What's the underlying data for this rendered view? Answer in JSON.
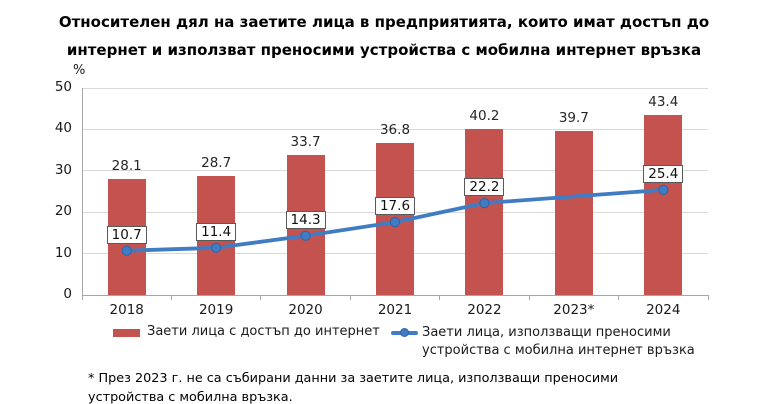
{
  "header": {
    "title_lines": [
      "Относителен дял на заетите лица в предприятията, които имат достъп до",
      "интернет и използват преносими устройства с мобилна интернет връзка"
    ]
  },
  "axis": {
    "unit_label": "%"
  },
  "legend": {
    "bar": "Заети лица с достъп до интернет",
    "line_l1": "Заети лица, използващи преносими",
    "line_l2": "устройства с мобилна интернет връзка"
  },
  "footnote": {
    "line1": "* През 2023 г. не са събирани данни за заетите лица, използващи преносими",
    "line2": "устройства с мобилна връзка."
  },
  "colors": {
    "bar": "#C4534F",
    "line": "#3F7CC3",
    "line_marker_edge": "#2F64A6",
    "grid": "#D9D9D9",
    "axis": "#A6A6A6",
    "label_box_border": "#595959"
  },
  "chart_data": {
    "type": "bar",
    "combo": "bar+line",
    "title": "Относителен дял на заетите лица в предприятията, които имат достъп до интернет и използват преносими устройства с мобилна интернет връзка",
    "categories": [
      "2018",
      "2019",
      "2020",
      "2021",
      "2022",
      "2023*",
      "2024"
    ],
    "series": [
      {
        "name": "Заети лица с достъп до интернет",
        "type": "bar",
        "color": "#C4534F",
        "values": [
          28.1,
          28.7,
          33.7,
          36.8,
          40.2,
          39.7,
          43.4
        ]
      },
      {
        "name": "Заети лица, използващи преносими устройства с мобилна интернет връзка",
        "type": "line",
        "color": "#3F7CC3",
        "values": [
          10.7,
          11.4,
          14.3,
          17.6,
          22.2,
          null,
          25.4
        ]
      }
    ],
    "xlabel": "",
    "ylabel": "%",
    "ylim": [
      0,
      50
    ],
    "ytick_step": 10,
    "grid": true,
    "legend_position": "bottom",
    "footnote": "* През 2023 г. не са събирани данни за заетите лица, използващи преносими устройства с мобилна връзка."
  }
}
